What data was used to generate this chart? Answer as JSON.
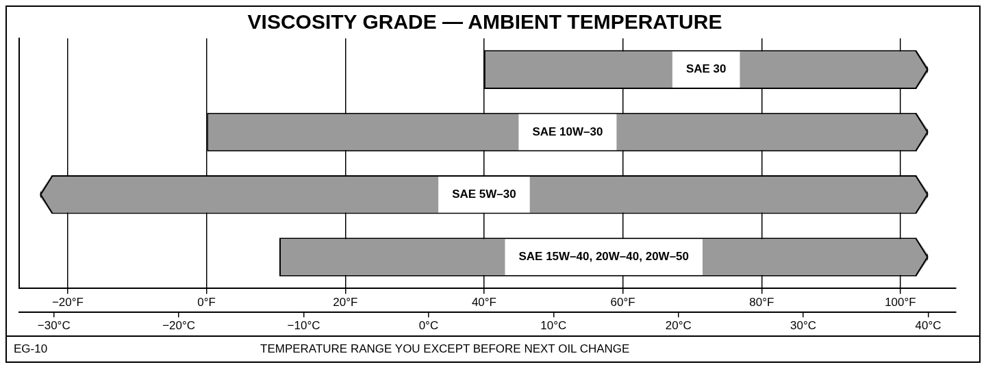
{
  "chart_data": {
    "type": "bar",
    "orientation": "horizontal",
    "title": "VISCOSITY GRADE — AMBIENT TEMPERATURE",
    "categories": [
      "SAE 30",
      "SAE 10W–30",
      "SAE 5W–30",
      "SAE 15W–40, 20W–40, 20W–50"
    ],
    "base": [
      40,
      0,
      -24,
      10.5
    ],
    "values": [
      64,
      104,
      128,
      93.5
    ],
    "color": "#9a9a9a",
    "xlim": [
      -27,
      108
    ],
    "xticks": [
      {
        "value": -20,
        "label": "−20°F"
      },
      {
        "value": 0,
        "label": "0°F"
      },
      {
        "value": 20,
        "label": "20°F"
      },
      {
        "value": 40,
        "label": "40°F"
      },
      {
        "value": 60,
        "label": "60°F"
      },
      {
        "value": 80,
        "label": "80°F"
      },
      {
        "value": 100,
        "label": "100°F"
      }
    ],
    "x2lim": [
      -32.78,
      42.22
    ],
    "x2ticks": [
      {
        "value": -30,
        "label": "−30°C"
      },
      {
        "value": -20,
        "label": "−20°C"
      },
      {
        "value": -10,
        "label": "−10°C"
      },
      {
        "value": 0,
        "label": "0°C"
      },
      {
        "value": 10,
        "label": "10°C"
      },
      {
        "value": 20,
        "label": "20°C"
      },
      {
        "value": 30,
        "label": "30°C"
      },
      {
        "value": 40,
        "label": "40°C"
      }
    ],
    "grid": "x",
    "tick_labels": "x",
    "annotations": [
      "EG-10",
      "TEMPERATURE RANGE YOU EXCEPT BEFORE NEXT OIL CHANGE"
    ]
  }
}
